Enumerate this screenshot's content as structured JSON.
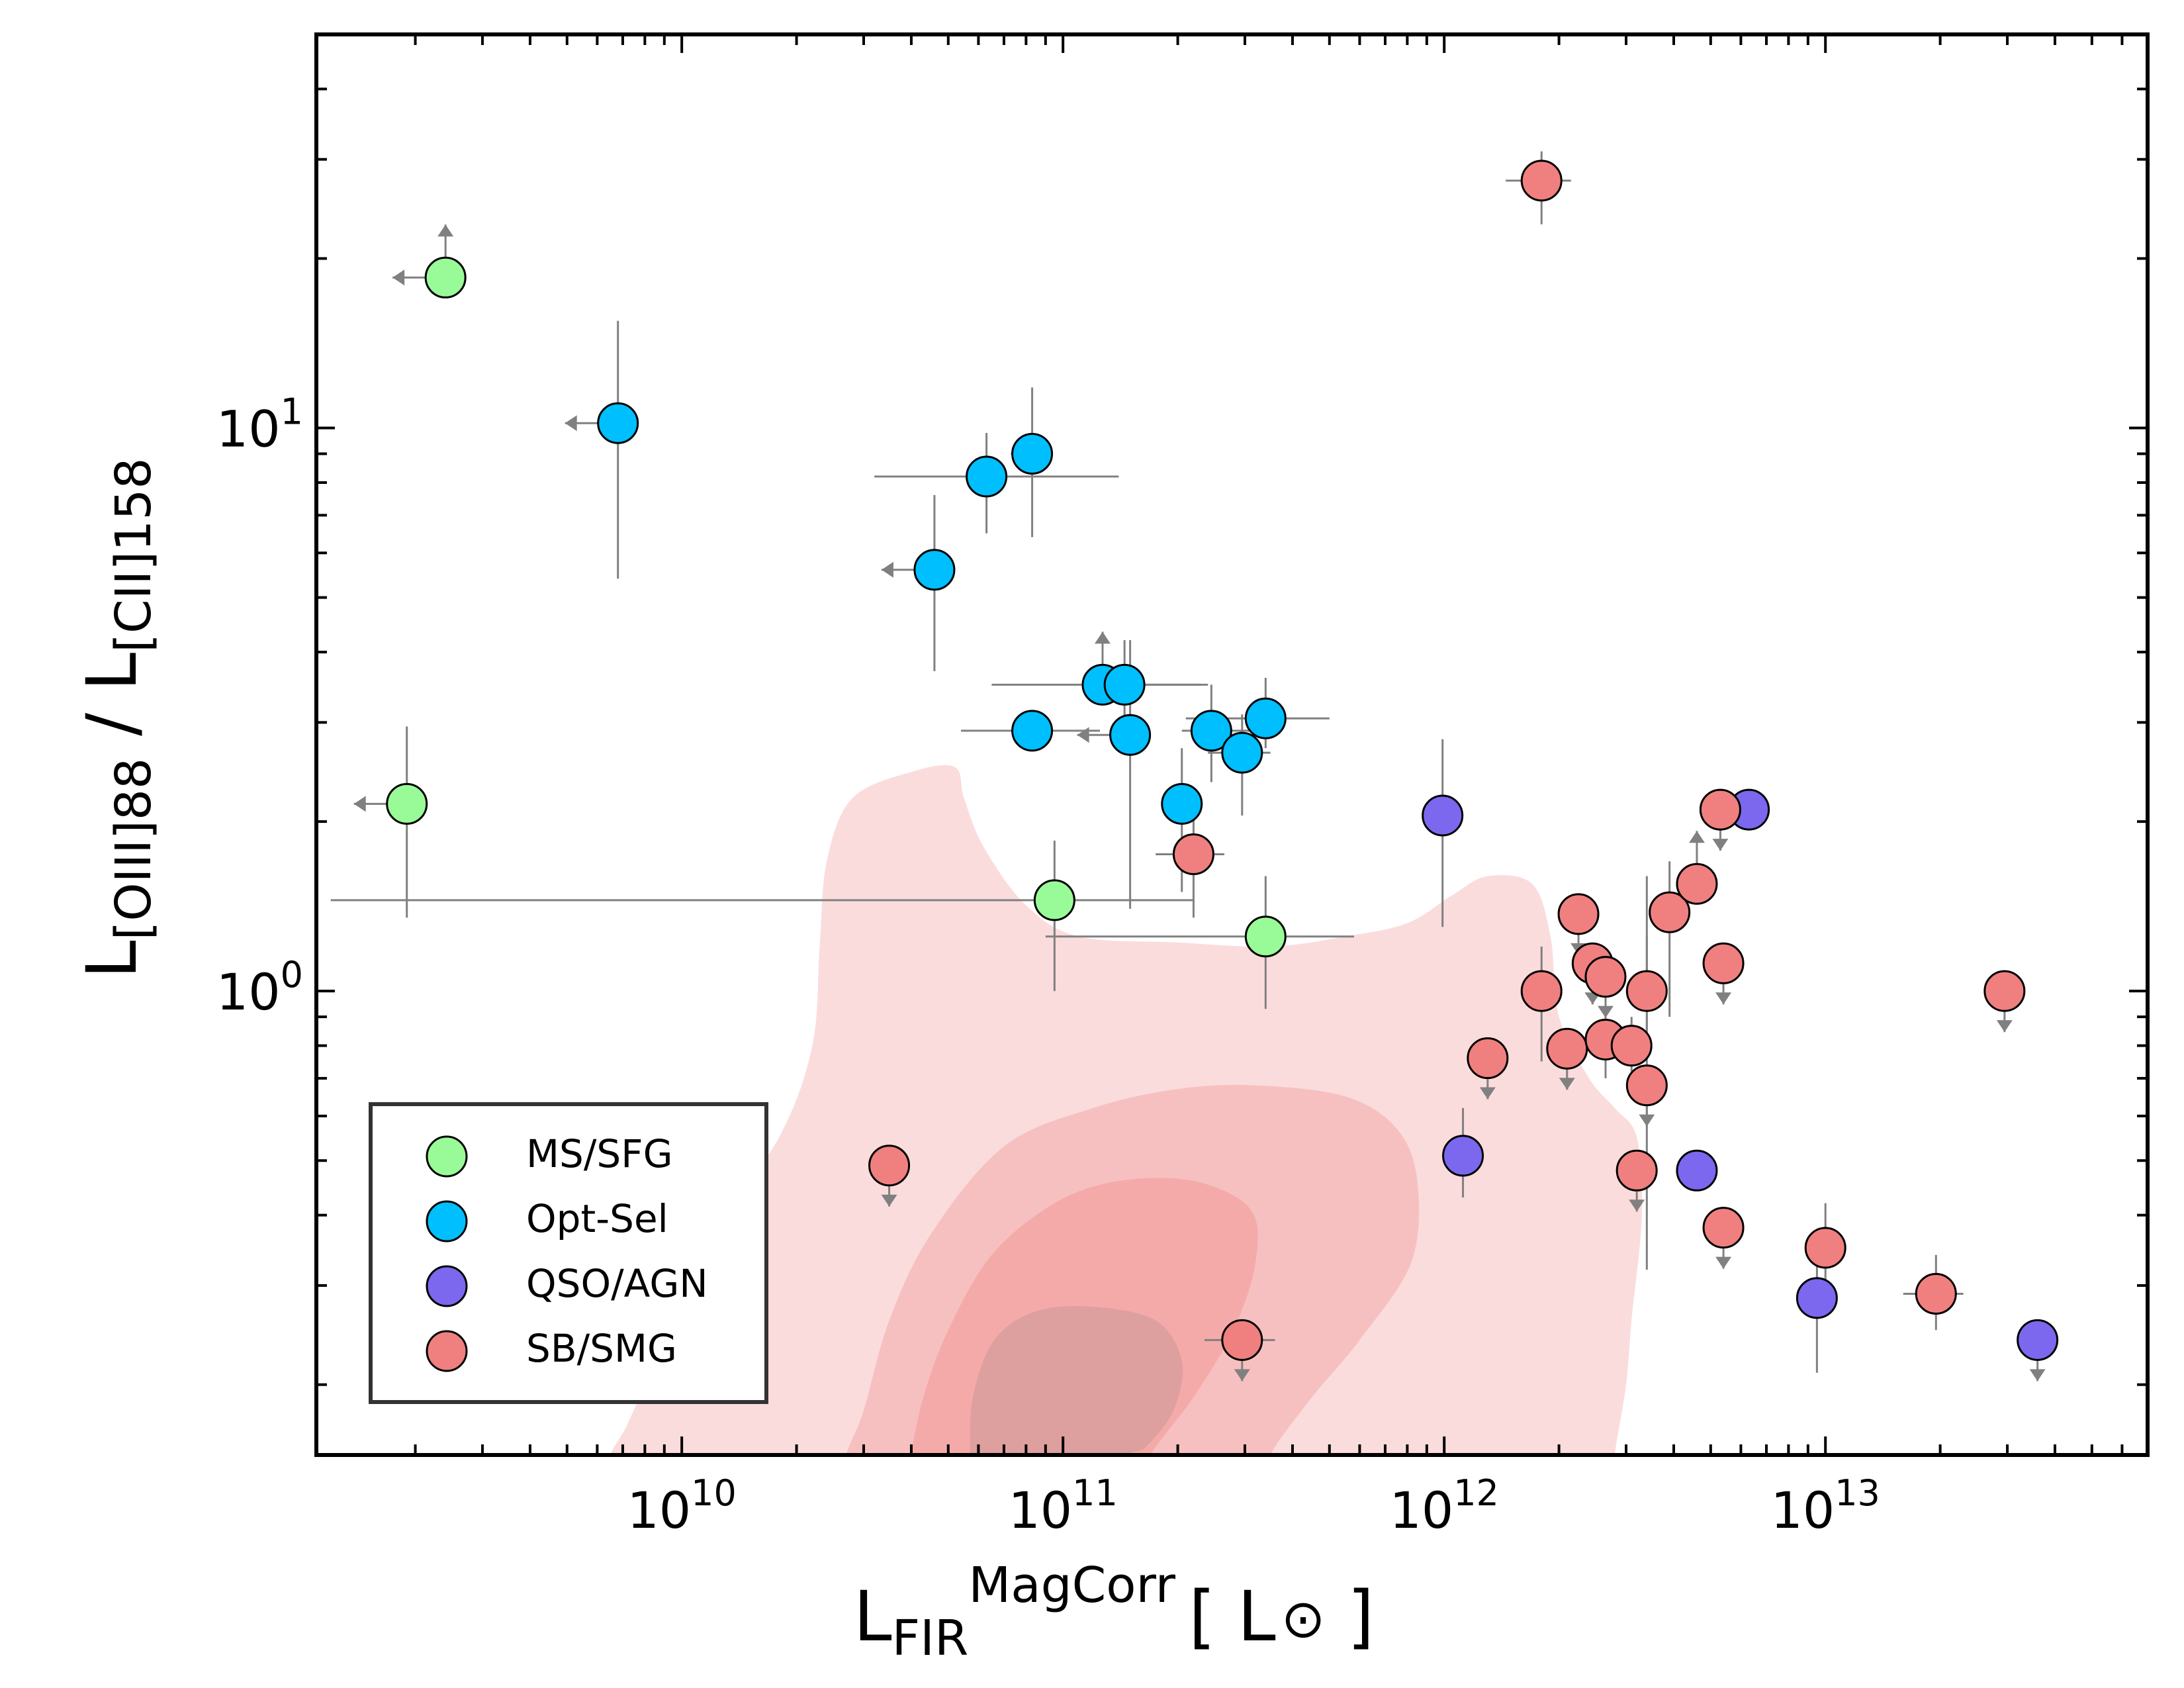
{
  "chart_data": {
    "type": "scatter",
    "x_scale": "log",
    "y_scale": "log",
    "xlim": [
      1100000000.0,
      70000000000000.0
    ],
    "ylim": [
      0.15,
      50
    ],
    "grid": false,
    "xlabel": {
      "base": "L",
      "sub": "FIR",
      "sup": "MagCorr",
      "unit": "[ L",
      "unit_symbol": "⊙",
      "unit_close": " ]"
    },
    "ylabel": {
      "base1": "L",
      "sub1": "[OIII]88",
      "sep": " / ",
      "base2": "L",
      "sub2": "[CII]158"
    },
    "x_major_ticks": [
      {
        "value": 10000000000.0,
        "base": "10",
        "exp": "10"
      },
      {
        "value": 100000000000.0,
        "base": "10",
        "exp": "11"
      },
      {
        "value": 1000000000000.0,
        "base": "10",
        "exp": "12"
      },
      {
        "value": 10000000000000.0,
        "base": "10",
        "exp": "13"
      }
    ],
    "y_major_ticks": [
      {
        "value": 1,
        "base": "10",
        "exp": "0"
      },
      {
        "value": 10,
        "base": "10",
        "exp": "1"
      }
    ],
    "legend": {
      "position": "lower-left",
      "entries": [
        {
          "label": "MS/SFG",
          "color": "#98fb98"
        },
        {
          "label": "Opt-Sel",
          "color": "#00bfff"
        },
        {
          "label": "QSO/AGN",
          "color": "#7b68ee"
        },
        {
          "label": "SB/SMG",
          "color": "#f08080"
        }
      ]
    },
    "density_contours": {
      "color": "#f08080",
      "levels": [
        {
          "level": 1,
          "opacity": 0.28,
          "points": [
            [
              6500000000.0,
              0.15
            ],
            [
              7200000000.0,
              0.17
            ],
            [
              8500000000.0,
              0.22
            ],
            [
              12000000000.0,
              0.37
            ],
            [
              18000000000.0,
              0.55
            ],
            [
              22000000000.0,
              0.8
            ],
            [
              23000000000.0,
              1.2
            ],
            [
              24000000000.0,
              1.7
            ],
            [
              28000000000.0,
              2.2
            ],
            [
              40000000000.0,
              2.45
            ],
            [
              52000000000.0,
              2.5
            ],
            [
              55000000000.0,
              2.2
            ],
            [
              62000000000.0,
              1.8
            ],
            [
              80000000000.0,
              1.42
            ],
            [
              110000000000.0,
              1.25
            ],
            [
              200000000000.0,
              1.22
            ],
            [
              350000000000.0,
              1.2
            ],
            [
              550000000000.0,
              1.25
            ],
            [
              800000000000.0,
              1.32
            ],
            [
              1050000000000.0,
              1.48
            ],
            [
              1300000000000.0,
              1.6
            ],
            [
              1700000000000.0,
              1.55
            ],
            [
              1900000000000.0,
              1.25
            ],
            [
              2000000000000.0,
              0.9
            ],
            [
              2400000000000.0,
              0.7
            ],
            [
              2800000000000.0,
              0.62
            ],
            [
              3200000000000.0,
              0.55
            ],
            [
              3300000000000.0,
              0.4
            ],
            [
              3100000000000.0,
              0.26
            ],
            [
              3000000000000.0,
              0.2
            ],
            [
              2800000000000.0,
              0.15
            ]
          ]
        },
        {
          "level": 2,
          "opacity": 0.3,
          "points": [
            [
              27000000000.0,
              0.15
            ],
            [
              30000000000.0,
              0.18
            ],
            [
              35000000000.0,
              0.26
            ],
            [
              45000000000.0,
              0.37
            ],
            [
              70000000000.0,
              0.53
            ],
            [
              120000000000.0,
              0.62
            ],
            [
              200000000000.0,
              0.67
            ],
            [
              320000000000.0,
              0.68
            ],
            [
              550000000000.0,
              0.65
            ],
            [
              750000000000.0,
              0.57
            ],
            [
              850000000000.0,
              0.46
            ],
            [
              820000000000.0,
              0.33
            ],
            [
              600000000000.0,
              0.24
            ],
            [
              450000000000.0,
              0.19
            ],
            [
              350000000000.0,
              0.15
            ]
          ]
        },
        {
          "level": 3,
          "opacity": 0.35,
          "points": [
            [
              40000000000.0,
              0.15
            ],
            [
              43000000000.0,
              0.19
            ],
            [
              50000000000.0,
              0.25
            ],
            [
              65000000000.0,
              0.34
            ],
            [
              95000000000.0,
              0.42
            ],
            [
              140000000000.0,
              0.46
            ],
            [
              220000000000.0,
              0.46
            ],
            [
              310000000000.0,
              0.41
            ],
            [
              320000000000.0,
              0.33
            ],
            [
              280000000000.0,
              0.25
            ],
            [
              220000000000.0,
              0.19
            ],
            [
              170000000000.0,
              0.15
            ]
          ]
        },
        {
          "level": 4,
          "color": "#bc8f8f",
          "opacity": 0.4,
          "points": [
            [
              57000000000.0,
              0.15
            ],
            [
              58000000000.0,
              0.19
            ],
            [
              66000000000.0,
              0.24
            ],
            [
              85000000000.0,
              0.27
            ],
            [
              120000000000.0,
              0.275
            ],
            [
              175000000000.0,
              0.26
            ],
            [
              205000000000.0,
              0.22
            ],
            [
              195000000000.0,
              0.18
            ],
            [
              165000000000.0,
              0.155
            ],
            [
              150000000000.0,
              0.15
            ]
          ]
        }
      ]
    },
    "series": [
      {
        "name": "MS/SFG",
        "color": "#98fb98",
        "points": [
          {
            "x": 2400000000.0,
            "y": 18.5,
            "xup": true,
            "ylo": true
          },
          {
            "x": 1900000000.0,
            "y": 2.15,
            "xup": true,
            "yerr": [
              1.35,
              2.95
            ]
          },
          {
            "x": 95000000000.0,
            "y": 1.45,
            "xerr": [
              1200000000.0,
              220000000000.0
            ],
            "yerr": [
              1.0,
              1.85
            ]
          },
          {
            "x": 340000000000.0,
            "y": 1.25,
            "xerr": [
              90000000000.0,
              580000000000.0
            ],
            "yerr": [
              0.93,
              1.6
            ]
          }
        ]
      },
      {
        "name": "Opt-Sel",
        "color": "#00bfff",
        "points": [
          {
            "x": 6800000000.0,
            "y": 10.2,
            "xup": true,
            "yerr": [
              5.4,
              15.5
            ]
          },
          {
            "x": 46000000000.0,
            "y": 5.6,
            "xup": true,
            "yerr": [
              3.7,
              7.6
            ]
          },
          {
            "x": 63000000000.0,
            "y": 8.2,
            "xerr": [
              32000000000.0,
              140000000000.0
            ],
            "yerr": [
              6.5,
              9.8
            ]
          },
          {
            "x": 83000000000.0,
            "y": 9.0,
            "xerr": [
              73000000000.0,
              92000000000.0
            ],
            "yerr": [
              6.4,
              11.8
            ]
          },
          {
            "x": 83000000000.0,
            "y": 2.9,
            "xerr": [
              54000000000.0,
              125000000000.0
            ]
          },
          {
            "x": 127000000000.0,
            "y": 3.5,
            "xerr": [
              65000000000.0,
              230000000000.0
            ],
            "ylo": true
          },
          {
            "x": 145000000000.0,
            "y": 3.5,
            "xerr": [
              115000000000.0,
              240000000000.0
            ],
            "yerr": [
              2.9,
              4.2
            ]
          },
          {
            "x": 150000000000.0,
            "y": 2.85,
            "xup": true,
            "yerr": [
              1.4,
              4.2
            ]
          },
          {
            "x": 205000000000.0,
            "y": 2.15,
            "yerr": [
              1.5,
              2.7
            ]
          },
          {
            "x": 245000000000.0,
            "y": 2.9,
            "xerr": [
              205000000000.0,
              340000000000.0
            ],
            "yerr": [
              2.35,
              3.5
            ]
          },
          {
            "x": 295000000000.0,
            "y": 2.65,
            "xerr": [
              240000000000.0,
              350000000000.0
            ],
            "yerr": [
              2.05,
              3.1
            ]
          },
          {
            "x": 340000000000.0,
            "y": 3.05,
            "xerr": [
              210000000000.0,
              500000000000.0
            ],
            "yerr": [
              2.7,
              3.6
            ]
          }
        ]
      },
      {
        "name": "QSO/AGN",
        "color": "#7b68ee",
        "points": [
          {
            "x": 990000000000.0,
            "y": 2.05,
            "yerr": [
              1.3,
              2.8
            ]
          },
          {
            "x": 1120000000000.0,
            "y": 0.51,
            "yerr": [
              0.43,
              0.62
            ]
          },
          {
            "x": 4600000000000.0,
            "y": 0.48
          },
          {
            "x": 6300000000000.0,
            "y": 2.1
          },
          {
            "x": 9500000000000.0,
            "y": 0.285,
            "yerr": [
              0.21,
              0.36
            ]
          },
          {
            "x": 36000000000000.0,
            "y": 0.24,
            "yup": true
          }
        ]
      },
      {
        "name": "SB/SMG",
        "color": "#f08080",
        "points": [
          {
            "x": 1800000000000.0,
            "y": 27.5,
            "xerr": [
              1450000000000.0,
              2150000000000.0
            ],
            "yerr": [
              23,
              31
            ]
          },
          {
            "x": 220000000000.0,
            "y": 1.75,
            "xerr": [
              175000000000.0,
              265000000000.0
            ],
            "yerr": [
              1.35,
              2.2
            ]
          },
          {
            "x": 35000000000.0,
            "y": 0.49,
            "yup": true
          },
          {
            "x": 295000000000.0,
            "y": 0.24,
            "xerr": [
              235000000000.0,
              360000000000.0
            ],
            "yup": true
          },
          {
            "x": 1300000000000.0,
            "y": 0.76,
            "yup": true
          },
          {
            "x": 1800000000000.0,
            "y": 1.0,
            "yerr": [
              0.75,
              1.2
            ]
          },
          {
            "x": 2100000000000.0,
            "y": 0.79,
            "yup": true
          },
          {
            "x": 2250000000000.0,
            "y": 1.37,
            "yup": true
          },
          {
            "x": 2450000000000.0,
            "y": 1.12,
            "yup": true
          },
          {
            "x": 2650000000000.0,
            "y": 1.06,
            "yup": true
          },
          {
            "x": 2650000000000.0,
            "y": 0.82,
            "yerr": [
              0.7,
              0.95
            ]
          },
          {
            "x": 3100000000000.0,
            "y": 0.8,
            "yerr": [
              0.72,
              0.9
            ]
          },
          {
            "x": 3200000000000.0,
            "y": 0.48,
            "yup": true
          },
          {
            "x": 3400000000000.0,
            "y": 1.0,
            "yerr": [
              0.85,
              1.6
            ]
          },
          {
            "x": 3400000000000.0,
            "y": 0.68,
            "yerr": [
              0.32,
              1.25
            ],
            "yup": true
          },
          {
            "x": 3900000000000.0,
            "y": 1.38,
            "yerr": [
              0.9,
              1.7
            ]
          },
          {
            "x": 4600000000000.0,
            "y": 1.55,
            "ylo": true
          },
          {
            "x": 5300000000000.0,
            "y": 2.1,
            "yup": true
          },
          {
            "x": 5400000000000.0,
            "y": 1.12,
            "yup": true
          },
          {
            "x": 5400000000000.0,
            "y": 0.38,
            "yup": true
          },
          {
            "x": 10000000000000.0,
            "y": 0.35,
            "yerr": [
              0.3,
              0.42
            ]
          },
          {
            "x": 19500000000000.0,
            "y": 0.29,
            "xerr": [
              16000000000000.0,
              23000000000000.0
            ],
            "yerr": [
              0.25,
              0.34
            ]
          },
          {
            "x": 29500000000000.0,
            "y": 1.0,
            "yup": true
          }
        ]
      }
    ]
  }
}
